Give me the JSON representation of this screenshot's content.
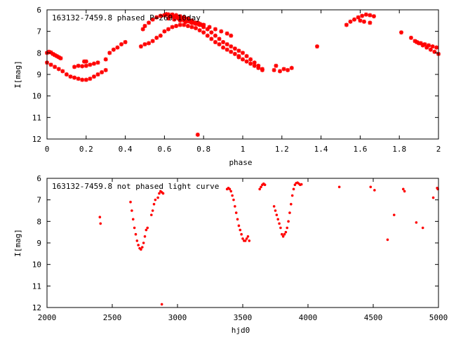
{
  "chart_data": [
    {
      "type": "scatter",
      "title": "163132-7459.8 phased P=269.10day",
      "xlabel": "phase",
      "ylabel": "I[mag]",
      "xlim": [
        0,
        2
      ],
      "ylim": [
        12,
        6
      ],
      "y_inverted": true,
      "x_ticks": [
        "0",
        "0.2",
        "0.4",
        "0.6",
        "0.8",
        "1",
        "1.2",
        "1.4",
        "1.6",
        "1.8",
        "2"
      ],
      "x_tick_values": [
        0,
        0.2,
        0.4,
        0.6,
        0.8,
        1.0,
        1.2,
        1.4,
        1.6,
        1.8,
        2.0
      ],
      "y_ticks": [
        "6",
        "7",
        "8",
        "9",
        "10",
        "11",
        "12"
      ],
      "y_tick_values": [
        6,
        7,
        8,
        9,
        10,
        11,
        12
      ],
      "marker": "star",
      "color": "#ff0000",
      "series": [
        {
          "x": [
            0.0,
            0.01,
            0.02,
            0.03,
            0.04,
            0.05,
            0.06,
            0.07,
            0.0,
            0.02,
            0.04,
            0.06,
            0.08,
            0.1,
            0.12,
            0.14,
            0.16,
            0.18,
            0.2,
            0.22,
            0.24,
            0.26,
            0.28,
            0.3,
            0.14,
            0.16,
            0.18,
            0.2,
            0.22,
            0.24,
            0.26,
            0.19,
            0.2,
            0.3,
            0.32,
            0.34,
            0.36,
            0.38,
            0.4,
            0.48,
            0.5,
            0.52,
            0.54,
            0.56,
            0.58,
            0.6,
            0.62,
            0.64,
            0.66,
            0.68,
            0.7,
            0.72,
            0.74,
            0.76,
            0.78,
            0.8,
            0.82,
            0.84,
            0.86,
            0.88,
            0.9,
            0.92,
            0.94,
            0.96,
            0.98,
            1.0,
            1.02,
            1.04,
            1.06,
            1.08,
            1.1,
            0.49,
            0.5,
            0.52,
            0.54,
            0.56,
            0.58,
            0.6,
            0.62,
            0.64,
            0.66,
            0.68,
            0.7,
            0.72,
            0.74,
            0.76,
            0.78,
            0.8,
            0.82,
            0.84,
            0.86,
            0.88,
            0.9,
            0.92,
            0.94,
            0.96,
            0.98,
            1.0,
            1.02,
            1.04,
            1.06,
            1.08,
            1.1,
            0.6,
            0.61,
            0.62,
            0.63,
            0.64,
            0.65,
            0.66,
            0.67,
            0.68,
            0.69,
            0.7,
            0.71,
            0.72,
            0.73,
            0.74,
            0.75,
            0.76,
            0.77,
            0.78,
            0.79,
            0.8,
            0.62,
            0.65,
            0.68,
            0.71,
            0.74,
            0.77,
            0.8,
            0.83,
            0.86,
            0.89,
            0.92,
            0.94,
            0.98,
            1.17,
            1.16,
            1.19,
            1.21,
            1.23,
            1.25,
            1.38,
            1.53,
            1.55,
            1.57,
            1.59,
            1.61,
            1.63,
            1.65,
            1.67,
            1.6,
            1.62,
            1.65,
            1.81,
            1.86,
            1.88,
            1.9,
            1.92,
            1.94,
            1.96,
            1.98,
            2.0,
            1.89,
            1.91,
            1.93,
            1.95,
            1.97,
            1.99,
            0.77
          ],
          "y": [
            8.0,
            7.95,
            7.98,
            8.05,
            8.1,
            8.15,
            8.2,
            8.25,
            8.45,
            8.55,
            8.65,
            8.75,
            8.85,
            9.0,
            9.1,
            9.15,
            9.2,
            9.25,
            9.25,
            9.2,
            9.1,
            9.0,
            8.9,
            8.8,
            8.65,
            8.6,
            8.62,
            8.6,
            8.55,
            8.5,
            8.45,
            8.4,
            8.4,
            8.3,
            8.0,
            7.85,
            7.75,
            7.6,
            7.5,
            7.7,
            7.6,
            7.55,
            7.45,
            7.3,
            7.2,
            7.0,
            6.9,
            6.8,
            6.75,
            6.7,
            6.7,
            6.75,
            6.8,
            6.85,
            6.95,
            7.05,
            7.2,
            7.35,
            7.5,
            7.6,
            7.75,
            7.85,
            7.95,
            8.05,
            8.15,
            8.3,
            8.4,
            8.5,
            8.6,
            8.7,
            8.8,
            6.9,
            6.75,
            6.6,
            6.45,
            6.35,
            6.28,
            6.25,
            6.22,
            6.22,
            6.25,
            6.3,
            6.35,
            6.4,
            6.5,
            6.6,
            6.7,
            6.8,
            6.9,
            7.05,
            7.2,
            7.35,
            7.5,
            7.6,
            7.7,
            7.8,
            7.9,
            8.0,
            8.15,
            8.3,
            8.45,
            8.6,
            8.75,
            6.25,
            6.2,
            6.22,
            6.3,
            6.25,
            6.35,
            6.3,
            6.4,
            6.45,
            6.4,
            6.5,
            6.55,
            6.5,
            6.55,
            6.6,
            6.6,
            6.65,
            6.6,
            6.65,
            6.7,
            6.7,
            6.4,
            6.45,
            6.5,
            6.55,
            6.6,
            6.65,
            6.7,
            6.8,
            6.9,
            7.0,
            7.1,
            7.2,
            8.2,
            8.6,
            8.8,
            8.85,
            8.75,
            8.8,
            8.7,
            7.7,
            6.7,
            6.55,
            6.45,
            6.35,
            6.28,
            6.22,
            6.25,
            6.3,
            6.5,
            6.55,
            6.6,
            7.05,
            7.3,
            7.45,
            7.55,
            7.65,
            7.75,
            7.85,
            7.95,
            8.05,
            7.5,
            7.55,
            7.6,
            7.65,
            7.7,
            7.75,
            11.8
          ]
        }
      ]
    },
    {
      "type": "scatter",
      "title": "163132-7459.8 not phased light curve",
      "xlabel": "hjd0",
      "ylabel": "I[mag]",
      "xlim": [
        2000,
        5000
      ],
      "ylim": [
        12,
        6
      ],
      "y_inverted": true,
      "x_ticks": [
        "2000",
        "2500",
        "3000",
        "3500",
        "4000",
        "4500",
        "5000"
      ],
      "x_tick_values": [
        2000,
        2500,
        3000,
        3500,
        4000,
        4500,
        5000
      ],
      "y_ticks": [
        "6",
        "7",
        "8",
        "9",
        "10",
        "11",
        "12"
      ],
      "y_tick_values": [
        6,
        7,
        8,
        9,
        10,
        11,
        12
      ],
      "marker": "dot",
      "color": "#ff0000",
      "series": [
        {
          "x": [
            2405,
            2410,
            2640,
            2650,
            2660,
            2670,
            2680,
            2690,
            2700,
            2710,
            2720,
            2730,
            2740,
            2750,
            2760,
            2770,
            2800,
            2810,
            2820,
            2830,
            2850,
            2860,
            2870,
            2880,
            2890,
            2880,
            3380,
            3390,
            3400,
            3410,
            3420,
            3430,
            3440,
            3450,
            3460,
            3470,
            3480,
            3490,
            3500,
            3510,
            3520,
            3530,
            3540,
            3550,
            3630,
            3640,
            3650,
            3660,
            3670,
            3740,
            3750,
            3760,
            3770,
            3780,
            3790,
            3800,
            3810,
            3820,
            3830,
            3840,
            3850,
            3860,
            3870,
            3880,
            3890,
            3900,
            3910,
            3920,
            3930,
            3940,
            3950,
            4240,
            4480,
            4510,
            4610,
            4660,
            4730,
            4740,
            4830,
            4880,
            4960,
            4990,
            4995
          ],
          "y": [
            7.8,
            8.1,
            7.1,
            7.5,
            7.9,
            8.3,
            8.6,
            8.9,
            9.1,
            9.25,
            9.3,
            9.2,
            9.0,
            8.7,
            8.4,
            8.3,
            7.7,
            7.5,
            7.2,
            7.0,
            6.9,
            6.7,
            6.6,
            6.65,
            6.7,
            11.85,
            6.5,
            6.45,
            6.5,
            6.6,
            6.8,
            7.0,
            7.3,
            7.6,
            7.9,
            8.2,
            8.4,
            8.6,
            8.8,
            8.9,
            8.9,
            8.8,
            8.7,
            8.9,
            6.5,
            6.4,
            6.3,
            6.25,
            6.3,
            7.3,
            7.5,
            7.7,
            7.9,
            8.1,
            8.3,
            8.6,
            8.7,
            8.6,
            8.5,
            8.3,
            8.0,
            7.6,
            7.2,
            6.8,
            6.5,
            6.3,
            6.22,
            6.2,
            6.25,
            6.3,
            6.28,
            6.4,
            6.4,
            6.55,
            8.85,
            7.7,
            6.5,
            6.6,
            8.05,
            8.3,
            6.9,
            6.45,
            6.5
          ]
        }
      ]
    }
  ]
}
